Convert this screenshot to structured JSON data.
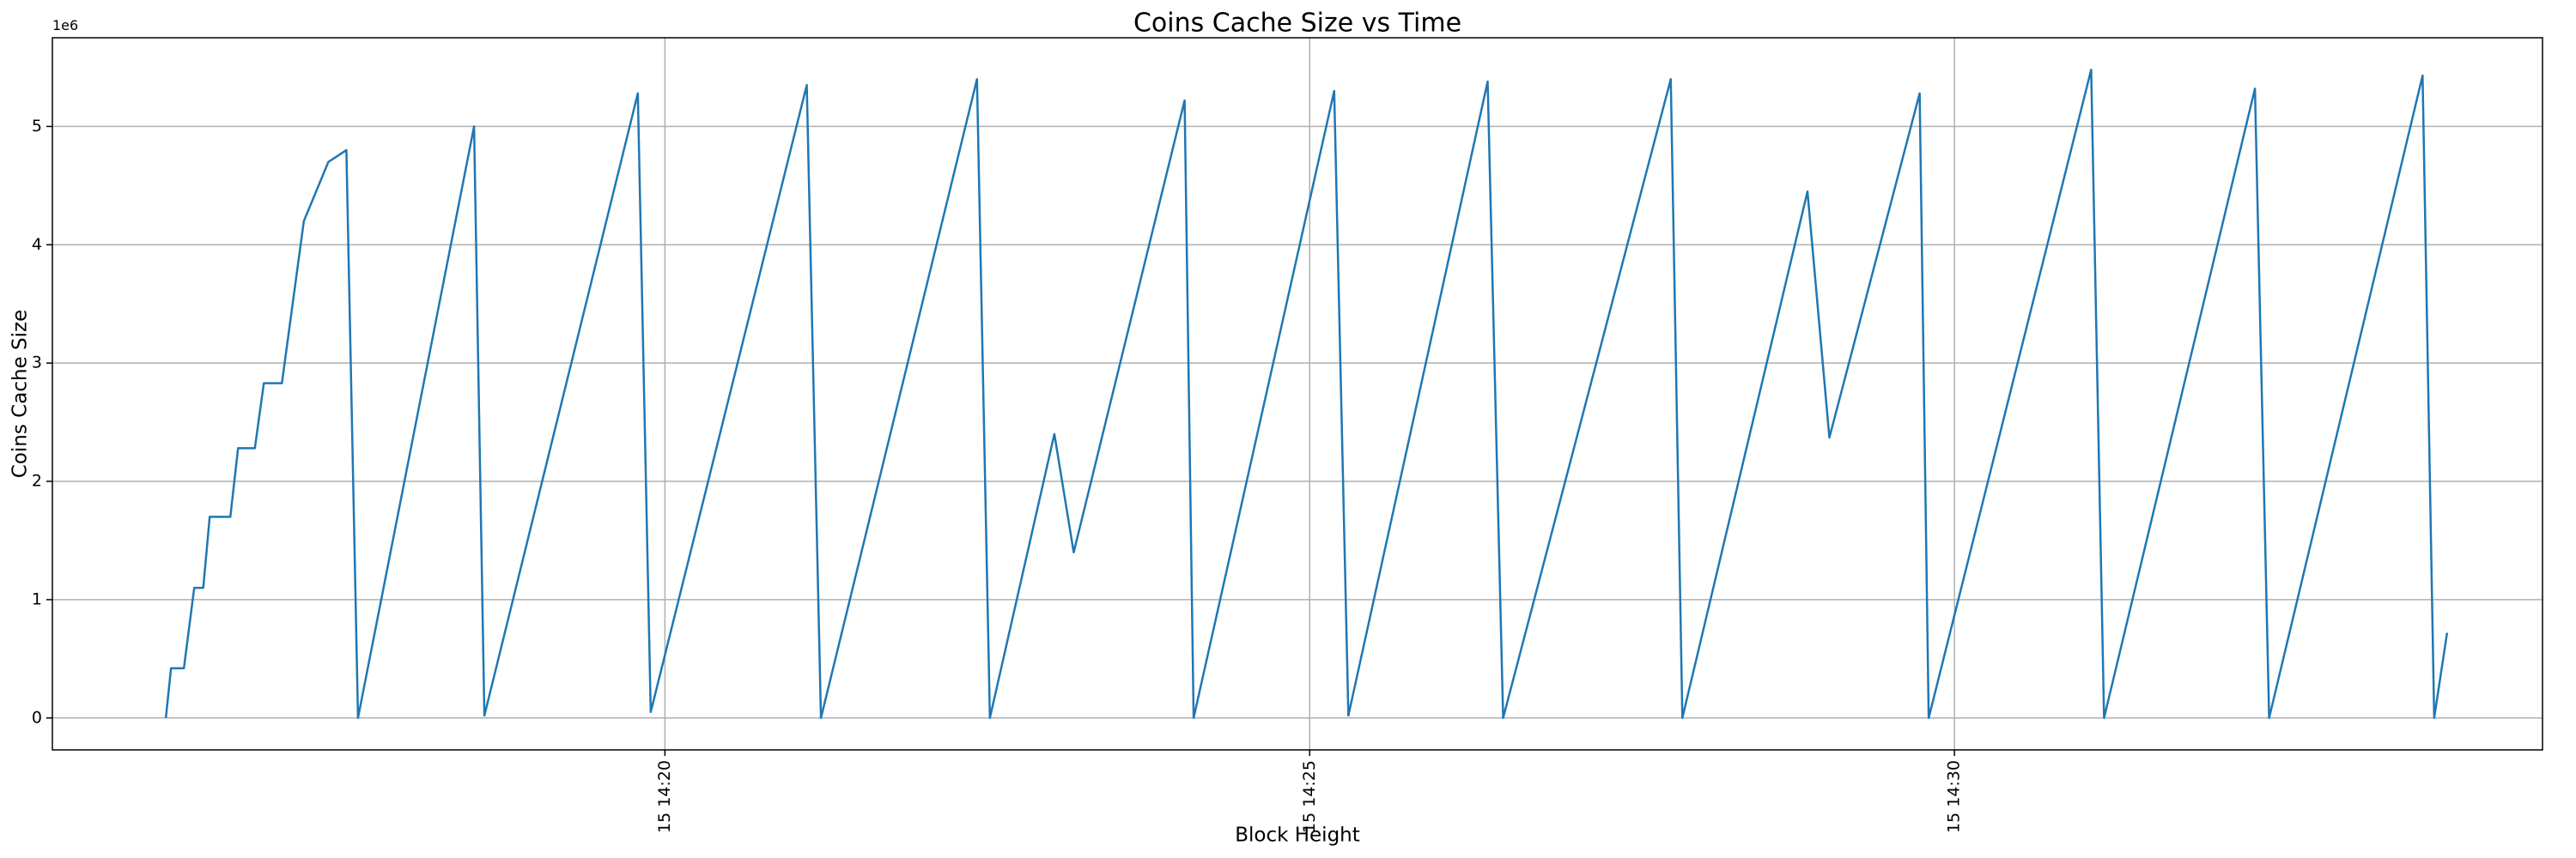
{
  "chart_data": {
    "type": "line",
    "title": "Coins Cache Size vs Time",
    "x_label": "Block Height",
    "y_label": "Coins Cache Size",
    "y_offset_label": "1e6",
    "color": "#1f77b4",
    "grid": true,
    "x": [
      856.13,
      856.17,
      856.27,
      856.35,
      856.42,
      856.47,
      856.63,
      856.69,
      856.82,
      856.89,
      857.03,
      857.2,
      857.39,
      857.53,
      857.62,
      858.52,
      858.6,
      859.79,
      859.89,
      861.1,
      861.21,
      862.42,
      862.52,
      863.02,
      863.17,
      864.03,
      864.1,
      865.19,
      865.3,
      866.38,
      866.5,
      867.8,
      867.89,
      868.86,
      869.03,
      869.73,
      869.8,
      871.06,
      871.16,
      872.33,
      872.44,
      873.63,
      873.72,
      873.82
    ],
    "values": [
      0,
      0.42,
      0.42,
      1.1,
      1.1,
      1.7,
      1.7,
      2.28,
      2.28,
      2.83,
      2.83,
      4.2,
      4.7,
      4.8,
      0,
      5.0,
      0.02,
      5.28,
      0.05,
      5.35,
      0,
      5.4,
      0,
      2.4,
      1.4,
      5.22,
      0,
      5.3,
      0.02,
      5.38,
      0,
      5.4,
      0,
      4.45,
      2.37,
      5.28,
      0,
      5.48,
      0,
      5.32,
      0,
      5.43,
      0,
      0.72
    ],
    "xlim": [
      855.25,
      874.56
    ],
    "xticks": [
      {
        "value": 860,
        "label": "15 14:20"
      },
      {
        "value": 865,
        "label": "15 14:25"
      },
      {
        "value": 870,
        "label": "15 14:30"
      }
    ],
    "ylim": [
      -0.27,
      5.75
    ],
    "yticks": [
      0,
      1,
      2,
      3,
      4,
      5
    ]
  }
}
